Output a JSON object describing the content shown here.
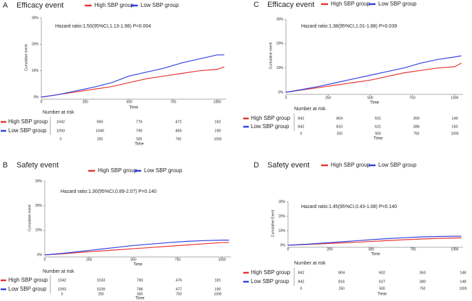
{
  "chart_data": [
    {
      "type": "line",
      "panel": "A",
      "title": "Efficacy event",
      "annotation": "Hazard ratio:1.50(95%CI,1.13-1.98) P=0.004",
      "ylabel": "Cumulative event",
      "xlabel": "Time",
      "x": [
        0,
        100,
        200,
        300,
        400,
        500,
        600,
        700,
        800,
        900,
        1000,
        1040
      ],
      "series": [
        {
          "name": "High SBP group",
          "color": "#e8322e",
          "values": [
            0,
            1,
            2,
            3,
            4,
            5.5,
            7,
            8,
            9,
            10,
            10.5,
            11.5
          ]
        },
        {
          "name": "Low SBP group",
          "color": "#2f3fe0",
          "values": [
            0,
            1,
            2.4,
            3.8,
            5.5,
            8,
            9.5,
            11,
            13,
            14.5,
            16,
            16
          ]
        }
      ],
      "xlim": [
        0,
        1050
      ],
      "ylim": [
        0,
        30
      ],
      "xticks": [
        0,
        250,
        500,
        750,
        1000
      ],
      "yticks": [
        {
          "value": 0,
          "label": "0%"
        },
        {
          "value": 10,
          "label": "10%"
        },
        {
          "value": 20,
          "label": "20%"
        },
        {
          "value": 30,
          "label": "30%"
        }
      ],
      "risk_table": {
        "title": "Number at risk",
        "xlabel": "Time",
        "xticks": [
          0,
          250,
          500,
          750,
          1000
        ],
        "rows": [
          {
            "name": "High SBP group",
            "color": "#e8322e",
            "values": [
              1042,
              960,
              776,
              472,
              162
            ]
          },
          {
            "name": "Low SBP group",
            "color": "#2f3fe0",
            "values": [
              1093,
              1040,
              790,
              469,
              190
            ]
          }
        ]
      }
    },
    {
      "type": "line",
      "panel": "B",
      "title": "Safety event",
      "annotation": "Hazard ratio:1.30(95%CI,0.89-2.07) P=0.140",
      "ylabel": "Cumulative event",
      "xlabel": "Time",
      "x": [
        0,
        100,
        200,
        300,
        400,
        500,
        600,
        700,
        800,
        900,
        1000,
        1040
      ],
      "series": [
        {
          "name": "High SBP group",
          "color": "#e8322e",
          "values": [
            0,
            0.4,
            1,
            1.5,
            2,
            2.5,
            3,
            3.5,
            4,
            4.5,
            5,
            5
          ]
        },
        {
          "name": "Low SBP group",
          "color": "#2f3fe0",
          "values": [
            0,
            0.6,
            1.4,
            2.2,
            3,
            3.8,
            4.4,
            5,
            5.5,
            5.8,
            6,
            6
          ]
        }
      ],
      "xlim": [
        0,
        1050
      ],
      "ylim": [
        0,
        30
      ],
      "xticks": [
        0,
        250,
        500,
        750,
        1000
      ],
      "yticks": [
        {
          "value": 0,
          "label": "0%"
        },
        {
          "value": 10,
          "label": "10%"
        },
        {
          "value": 20,
          "label": "20%"
        },
        {
          "value": 30,
          "label": "30%"
        }
      ],
      "risk_table": {
        "title": "Number at risk",
        "xlabel": "Time",
        "xticks": [
          0,
          250,
          500,
          750,
          1000
        ],
        "rows": [
          {
            "name": "High SBP group",
            "color": "#e8322e",
            "values": [
              1042,
              1033,
              783,
              476,
              181
            ]
          },
          {
            "name": "Low SBP group",
            "color": "#2f3fe0",
            "values": [
              1093,
              1039,
              786,
              477,
              190
            ]
          }
        ]
      }
    },
    {
      "type": "line",
      "panel": "C",
      "title": "Efficacy event",
      "annotation": "Hazard ratio:1.38(95%CI,1.01-1.88) P=0.039",
      "ylabel": "Cumulative event",
      "xlabel": "Time",
      "x": [
        0,
        100,
        200,
        300,
        400,
        500,
        600,
        700,
        800,
        900,
        1000,
        1040
      ],
      "series": [
        {
          "name": "High SBP group",
          "color": "#e8322e",
          "values": [
            0,
            1,
            2,
            3,
            4,
            5,
            6.5,
            8,
            9,
            10,
            10.5,
            12
          ]
        },
        {
          "name": "Low SBP group",
          "color": "#2f3fe0",
          "values": [
            0,
            1.2,
            2.5,
            4,
            5.5,
            7,
            8.5,
            10,
            12,
            13.5,
            14.5,
            15
          ]
        }
      ],
      "xlim": [
        0,
        1050
      ],
      "ylim": [
        0,
        30
      ],
      "xticks": [
        0,
        250,
        500,
        750,
        1000
      ],
      "yticks": [
        {
          "value": 0,
          "label": "0%"
        },
        {
          "value": 10,
          "label": "10%"
        },
        {
          "value": 20,
          "label": "20%"
        },
        {
          "value": 30,
          "label": "30%"
        }
      ],
      "risk_table": {
        "title": "Number at risk",
        "xlabel": "Time",
        "xticks": [
          0,
          250,
          500,
          750,
          1000
        ],
        "rows": [
          {
            "name": "High SBP group",
            "color": "#e8322e",
            "values": [
              842,
              804,
              601,
              359,
              149
            ]
          },
          {
            "name": "Low SBP group",
            "color": "#2f3fe0",
            "values": [
              842,
              810,
              621,
              386,
              150
            ]
          }
        ]
      }
    },
    {
      "type": "line",
      "panel": "D",
      "title": "Safety event",
      "annotation": "Hazard ratio:1.45(95%CI,0.43-1.08) P=0.140",
      "ylabel": "Cumulative Event",
      "xlabel": "Time",
      "x": [
        0,
        100,
        200,
        300,
        400,
        500,
        600,
        700,
        800,
        900,
        1000,
        1040
      ],
      "series": [
        {
          "name": "High SBP group",
          "color": "#e8322e",
          "values": [
            0,
            0.4,
            1,
            1.5,
            2,
            2.6,
            3.2,
            3.8,
            4.3,
            4.7,
            5,
            5
          ]
        },
        {
          "name": "Low SBP group",
          "color": "#2f3fe0",
          "values": [
            0,
            0.6,
            1.4,
            2.2,
            3,
            3.8,
            4.6,
            5.2,
            5.7,
            6,
            6.2,
            6.2
          ]
        }
      ],
      "xlim": [
        0,
        1050
      ],
      "ylim": [
        0,
        30
      ],
      "xticks": [
        0,
        250,
        500,
        750,
        1000
      ],
      "yticks": [
        {
          "value": 0,
          "label": "0%"
        },
        {
          "value": 10,
          "label": "10%"
        },
        {
          "value": 20,
          "label": "20%"
        },
        {
          "value": 30,
          "label": "30%"
        }
      ],
      "risk_table": {
        "title": "Number at risk",
        "xlabel": "Time",
        "xticks": [
          0,
          250,
          500,
          750,
          1000
        ],
        "rows": [
          {
            "name": "High SBP group",
            "color": "#e8322e",
            "values": [
              842,
              804,
              602,
              363,
              148
            ]
          },
          {
            "name": "Low SBP group",
            "color": "#2f3fe0",
            "values": [
              842,
              816,
              627,
              380,
              148
            ]
          }
        ]
      }
    }
  ]
}
